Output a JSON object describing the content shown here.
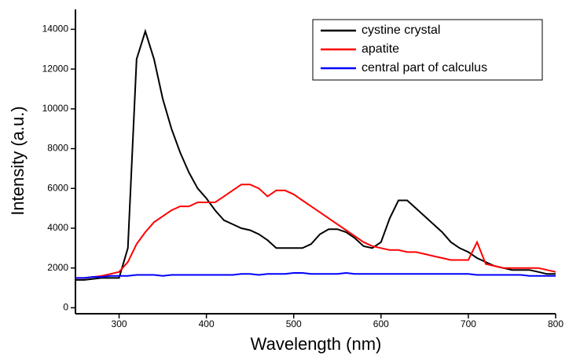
{
  "chart_data": {
    "type": "line",
    "x_label": "Wavelength (nm)",
    "y_label": "Intensity (a.u.)",
    "x": [
      250,
      260,
      270,
      280,
      290,
      300,
      310,
      320,
      330,
      340,
      350,
      360,
      370,
      380,
      390,
      400,
      410,
      420,
      430,
      440,
      450,
      460,
      470,
      480,
      490,
      500,
      510,
      520,
      530,
      540,
      550,
      560,
      570,
      580,
      590,
      600,
      610,
      620,
      630,
      640,
      650,
      660,
      670,
      680,
      690,
      700,
      710,
      720,
      730,
      740,
      750,
      760,
      770,
      780,
      790,
      800
    ],
    "series": [
      {
        "name": "cystine crystal",
        "color": "#000000",
        "values": [
          1400,
          1400,
          1450,
          1500,
          1500,
          1500,
          3000,
          12500,
          13900,
          12500,
          10500,
          9000,
          7800,
          6800,
          6000,
          5500,
          4900,
          4400,
          4200,
          4000,
          3900,
          3700,
          3400,
          3000,
          3000,
          3000,
          3000,
          3200,
          3700,
          3950,
          3950,
          3800,
          3500,
          3100,
          3000,
          3300,
          4500,
          5400,
          5400,
          5000,
          4600,
          4200,
          3800,
          3300,
          3000,
          2800,
          2500,
          2300,
          2100,
          2000,
          1900,
          1900,
          1900,
          1800,
          1700,
          1700
        ]
      },
      {
        "name": "apatite",
        "color": "#ff0000",
        "values": [
          1500,
          1500,
          1550,
          1600,
          1700,
          1800,
          2300,
          3200,
          3800,
          4300,
          4600,
          4900,
          5100,
          5100,
          5300,
          5300,
          5300,
          5600,
          5900,
          6200,
          6200,
          6000,
          5600,
          5900,
          5900,
          5700,
          5400,
          5100,
          4800,
          4500,
          4200,
          3900,
          3600,
          3300,
          3100,
          3000,
          2900,
          2900,
          2800,
          2800,
          2700,
          2600,
          2500,
          2400,
          2400,
          2400,
          3300,
          2200,
          2100,
          2000,
          2000,
          2000,
          2000,
          2000,
          1900,
          1800
        ]
      },
      {
        "name": "central part of calculus",
        "color": "#0000ff",
        "values": [
          1500,
          1500,
          1550,
          1550,
          1600,
          1600,
          1600,
          1650,
          1650,
          1650,
          1600,
          1650,
          1650,
          1650,
          1650,
          1650,
          1650,
          1650,
          1650,
          1700,
          1700,
          1650,
          1700,
          1700,
          1700,
          1750,
          1750,
          1700,
          1700,
          1700,
          1700,
          1750,
          1700,
          1700,
          1700,
          1700,
          1700,
          1700,
          1700,
          1700,
          1700,
          1700,
          1700,
          1700,
          1700,
          1700,
          1650,
          1650,
          1650,
          1650,
          1650,
          1650,
          1600,
          1600,
          1600,
          1600
        ]
      }
    ],
    "xlim": [
      250,
      800
    ],
    "xticks": [
      300,
      400,
      500,
      600,
      700,
      800
    ],
    "ylim": [
      -300,
      15000
    ],
    "yticks": [
      0,
      2000,
      4000,
      6000,
      8000,
      10000,
      12000,
      14000
    ],
    "legend": "upper right"
  }
}
